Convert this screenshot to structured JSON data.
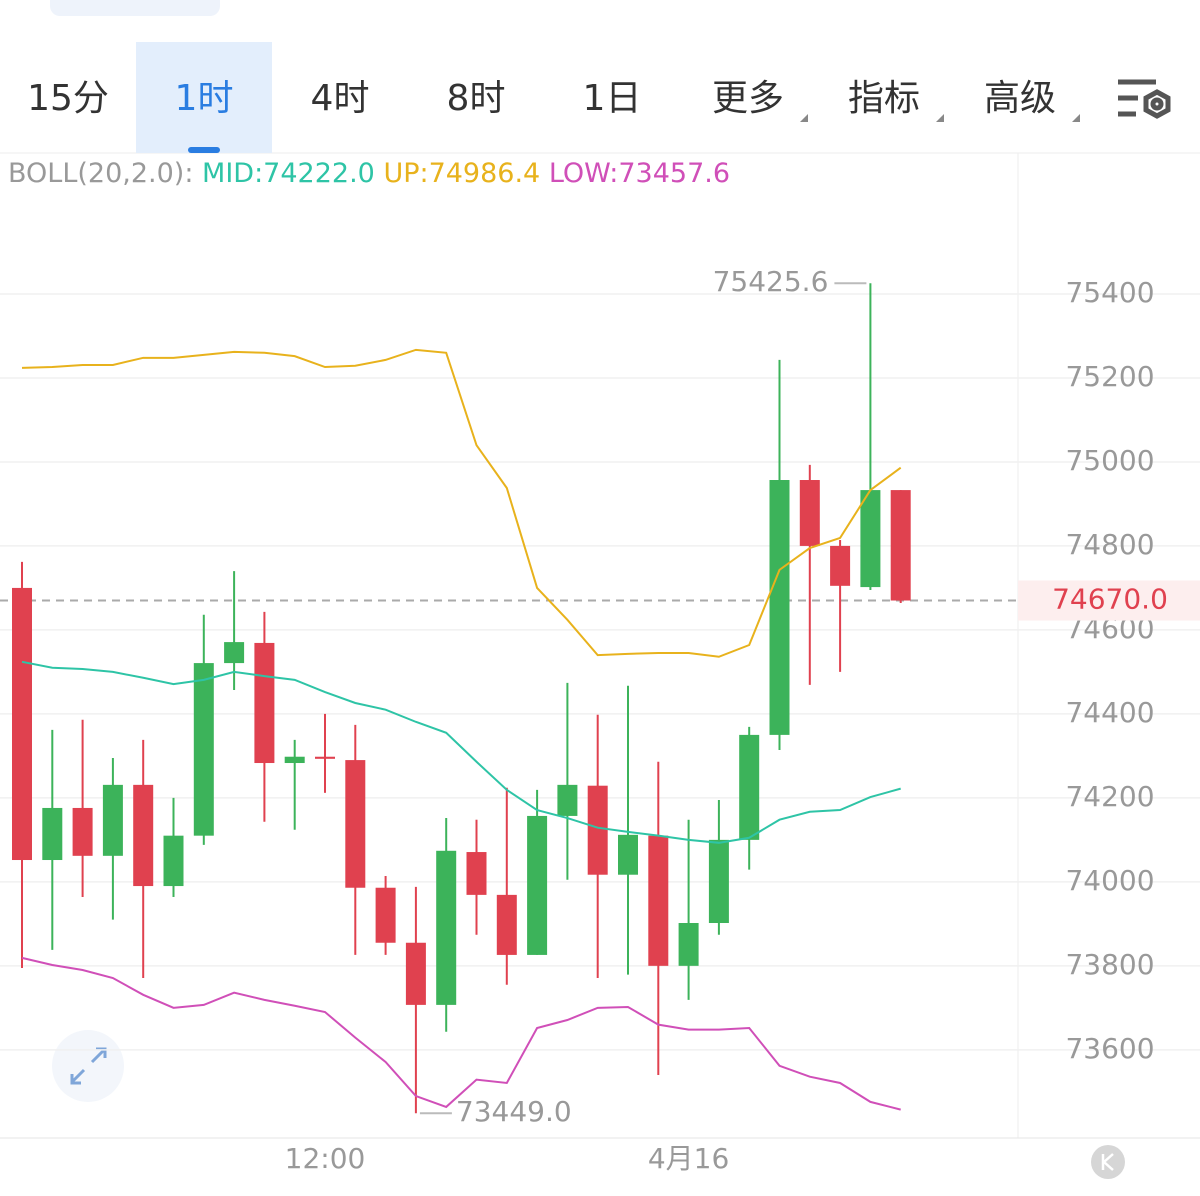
{
  "tabs": [
    "15分",
    "1时",
    "4时",
    "8时",
    "1日",
    "更多",
    "指标",
    "高级"
  ],
  "active_tab": 1,
  "chart_data": {
    "type": "candlestick",
    "indicator": "BOLL(20,2.0):",
    "categories": [
      null,
      null,
      null,
      null,
      null,
      null,
      null,
      null,
      null,
      null,
      "12:00",
      null,
      null,
      null,
      null,
      null,
      null,
      null,
      null,
      null,
      null,
      null,
      "4月16",
      null,
      null,
      null,
      null,
      null,
      null,
      null
    ],
    "open": [
      74700,
      74052,
      74176,
      74062,
      74231,
      73990,
      74110,
      74521,
      74569,
      74283,
      74298,
      74290,
      73986,
      73855,
      73707,
      74071,
      73969,
      73826,
      74157,
      74229,
      74017,
      74110,
      73800,
      73902,
      74100,
      74350,
      74957,
      74800,
      74702,
      74933
    ],
    "high": [
      74762,
      74362,
      74386,
      74295,
      74338,
      74200,
      74636,
      74740,
      74643,
      74338,
      74400,
      74374,
      74014,
      73988,
      74152,
      74148,
      74224,
      74219,
      74474,
      74398,
      74467,
      74286,
      74148,
      74195,
      74369,
      75243,
      74993,
      74814,
      75425.6,
      74933
    ],
    "low": [
      73795,
      73838,
      73964,
      73910,
      73771,
      73964,
      74088,
      74457,
      74143,
      74124,
      74212,
      73826,
      73826,
      73449.0,
      73643,
      73874,
      73755,
      73826,
      74005,
      73771,
      73779,
      73540,
      73719,
      73874,
      74029,
      74314,
      74469,
      74500,
      74695,
      74664
    ],
    "close": [
      74052,
      74176,
      74062,
      74231,
      73990,
      74110,
      74521,
      74571,
      74283,
      74298,
      74293,
      73986,
      73855,
      73707,
      74074,
      73969,
      73826,
      74157,
      74231,
      74017,
      74112,
      73800,
      73902,
      74100,
      74350,
      74957,
      74800,
      74705,
      74933,
      74670.0
    ],
    "up_color": "#3cb35a",
    "down_color": "#e0414f",
    "series": [
      {
        "name": "MID:74222.0",
        "color": "#2ec4a6",
        "values": [
          74524,
          74510,
          74507,
          74500,
          74486,
          74471,
          74481,
          74500,
          74490,
          74481,
          74452,
          74426,
          74410,
          74381,
          74355,
          74286,
          74219,
          74171,
          74152,
          74129,
          74119,
          74110,
          74100,
          74093,
          74105,
          74148,
          74167,
          74171,
          74202,
          74222.0
        ]
      },
      {
        "name": "UP:74986.4",
        "color": "#e8b21c",
        "values": [
          75224,
          75226,
          75231,
          75231,
          75248,
          75248,
          75255,
          75262,
          75260,
          75252,
          75226,
          75229,
          75243,
          75267,
          75260,
          75040,
          74938,
          74700,
          74624,
          74540,
          74543,
          74545,
          74545,
          74536,
          74564,
          74743,
          74795,
          74819,
          74933,
          74986.4
        ]
      },
      {
        "name": "LOW:73457.6",
        "color": "#d04fb8",
        "values": [
          73819,
          73802,
          73790,
          73771,
          73731,
          73700,
          73707,
          73736,
          73719,
          73705,
          73690,
          73629,
          73571,
          73490,
          73464,
          73529,
          73521,
          73652,
          73671,
          73700,
          73702,
          73660,
          73648,
          73648,
          73652,
          73562,
          73536,
          73521,
          73476,
          73457.6
        ]
      }
    ],
    "high_label": {
      "value": 75425.6,
      "label": "75425.6"
    },
    "low_label": {
      "value": 73449.0,
      "label": "73449.0"
    },
    "last_price": {
      "value": 74670.0,
      "label": "74670.0"
    },
    "ylim": [
      73390,
      75731
    ],
    "yticks": [
      73600,
      73800,
      74000,
      74200,
      74400,
      74600,
      74800,
      75000,
      75200,
      75400
    ],
    "grid": true
  }
}
